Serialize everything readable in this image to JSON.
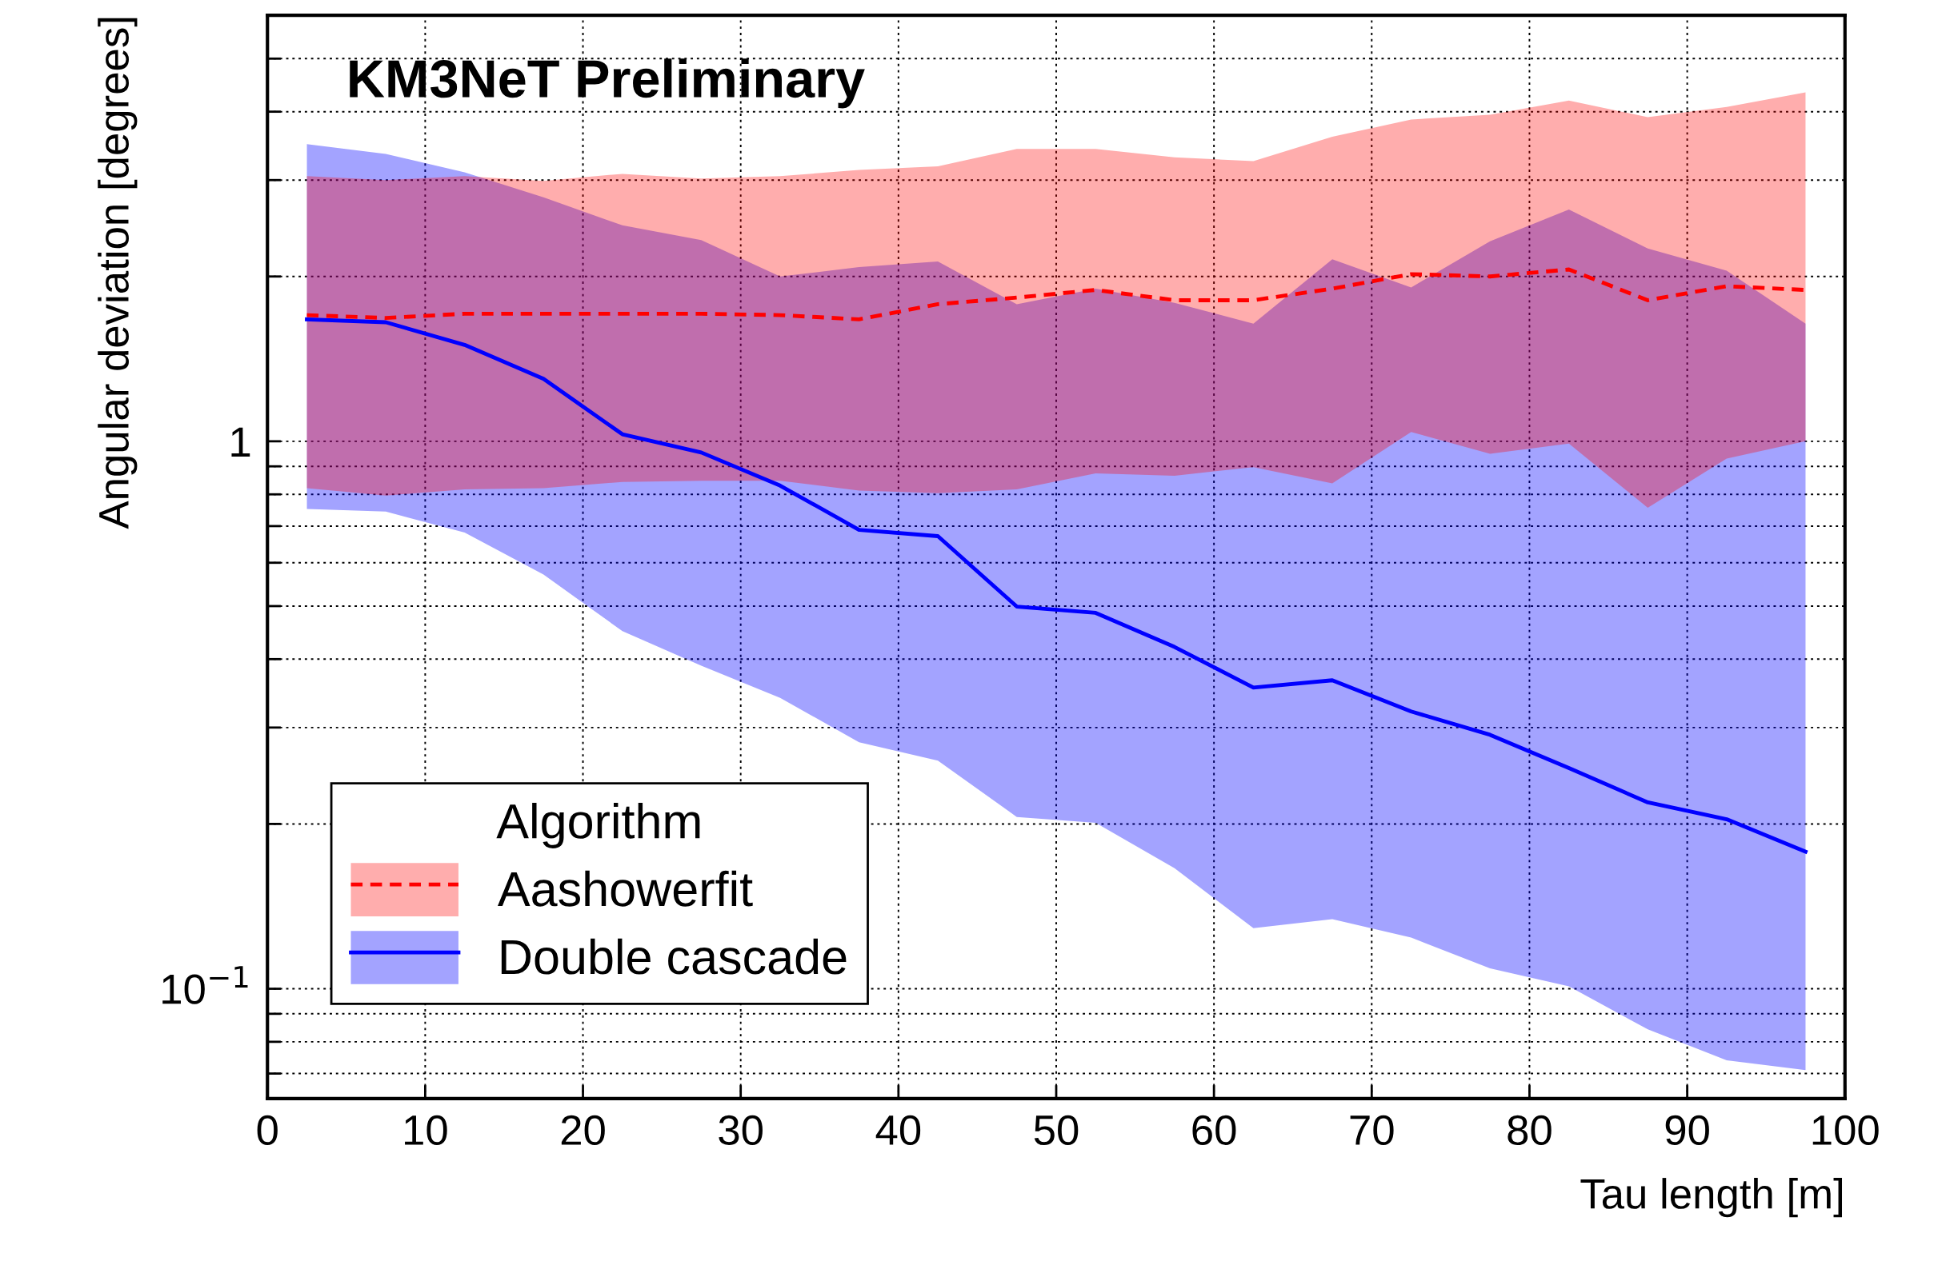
{
  "chart_data": {
    "type": "line",
    "xlabel": "Tau length [m]",
    "ylabel": "Angular deviation [degrees]",
    "legend_title": "Algorithm",
    "legend": "bottom left",
    "grid": true,
    "log": "y",
    "annotations": [
      "KM3NeT Preliminary"
    ],
    "x": [
      2.5,
      7.5,
      12.5,
      17.5,
      22.5,
      27.5,
      32.5,
      37.5,
      42.5,
      47.5,
      52.5,
      57.5,
      62.5,
      67.5,
      72.5,
      77.5,
      82.5,
      87.5,
      92.5,
      97.5
    ],
    "xlim": [
      0,
      100
    ],
    "xticks": [
      0,
      10,
      20,
      30,
      40,
      50,
      60,
      70,
      80,
      90,
      100
    ],
    "ylim": [
      0.063,
      6.0
    ],
    "yticks": [
      {
        "value": 0.07,
        "label": null
      },
      {
        "value": 0.08,
        "label": null
      },
      {
        "value": 0.09,
        "label": null
      },
      {
        "value": 0.1,
        "label": "10$^{−1}$"
      },
      {
        "value": 0.2,
        "label": null
      },
      {
        "value": 0.3,
        "label": null
      },
      {
        "value": 0.4,
        "label": null
      },
      {
        "value": 0.5,
        "label": null
      },
      {
        "value": 0.6,
        "label": null
      },
      {
        "value": 0.7,
        "label": null
      },
      {
        "value": 0.8,
        "label": null
      },
      {
        "value": 0.9,
        "label": null
      },
      1,
      {
        "value": 2,
        "label": null
      },
      {
        "value": 3,
        "label": null
      },
      {
        "value": 4,
        "label": null
      },
      {
        "value": 5,
        "label": null
      }
    ],
    "series": [
      {
        "name": "Double cascade",
        "color": "#0000ff",
        "line_style": "solid",
        "values": [
          1.67,
          1.65,
          1.5,
          1.3,
          1.03,
          0.954,
          0.83,
          0.689,
          0.671,
          0.499,
          0.486,
          0.421,
          0.355,
          0.366,
          0.321,
          0.291,
          0.253,
          0.219,
          0.204,
          0.178
        ],
        "lower": [
          0.752,
          0.744,
          0.681,
          0.571,
          0.45,
          0.389,
          0.34,
          0.282,
          0.261,
          0.206,
          0.201,
          0.166,
          0.129,
          0.134,
          0.124,
          0.109,
          0.101,
          0.0843,
          0.074,
          0.071
        ],
        "upper": [
          3.49,
          3.35,
          3.1,
          2.79,
          2.48,
          2.33,
          2.0,
          2.08,
          2.13,
          1.78,
          1.9,
          1.79,
          1.64,
          2.15,
          1.91,
          2.32,
          2.65,
          2.25,
          2.05,
          1.64
        ]
      },
      {
        "name": "Aashowerfit",
        "color": "#ff0000",
        "line_style": "dashed",
        "values": [
          1.7,
          1.68,
          1.71,
          1.71,
          1.71,
          1.71,
          1.7,
          1.67,
          1.78,
          1.83,
          1.89,
          1.81,
          1.81,
          1.9,
          2.02,
          2.0,
          2.06,
          1.81,
          1.92,
          1.89
        ],
        "lower": [
          0.821,
          0.796,
          0.817,
          0.821,
          0.843,
          0.847,
          0.847,
          0.813,
          0.804,
          0.817,
          0.874,
          0.865,
          0.897,
          0.838,
          1.04,
          0.949,
          0.99,
          0.756,
          0.93,
          1.0
        ],
        "upper": [
          3.05,
          3.0,
          3.05,
          2.99,
          3.08,
          3.02,
          3.05,
          3.13,
          3.18,
          3.42,
          3.42,
          3.3,
          3.25,
          3.6,
          3.87,
          3.95,
          4.19,
          3.91,
          4.08,
          4.34
        ]
      }
    ]
  }
}
